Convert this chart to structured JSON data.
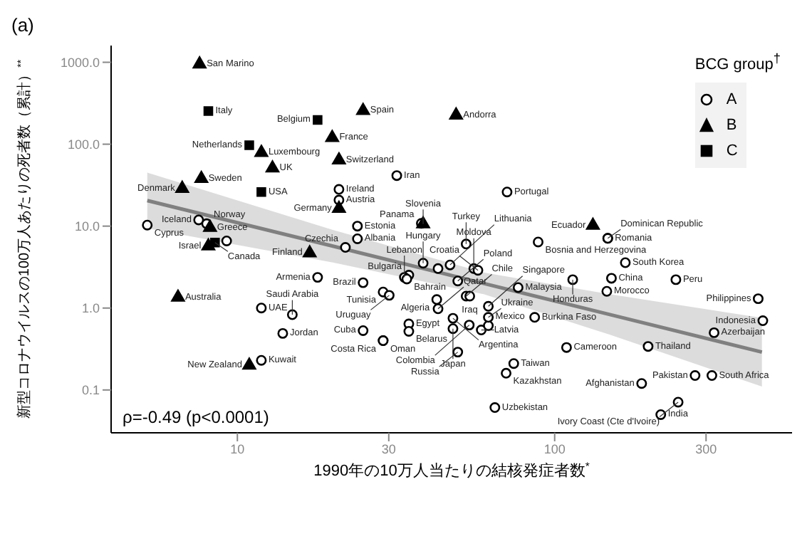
{
  "chart_data": {
    "type": "scatter",
    "xlabel": "1990年の10万人当たりの結核発症者数$^{*}$",
    "ylabel": "新型コロナウイルスの100万人あたりの死者数（累計）$^{**}$",
    "legend_title": "BCG group$^{†}$",
    "legend": "top right",
    "log": "xy",
    "xlim": [
      4,
      560
    ],
    "xticks": [
      10,
      30,
      100,
      300
    ],
    "ylim": [
      0.03,
      1600
    ],
    "yticks": [
      {
        "value": 0.1,
        "label": "0.1"
      },
      {
        "value": 1,
        "label": "1.0"
      },
      {
        "value": 10,
        "label": "10.0"
      },
      {
        "value": 100,
        "label": "100.0"
      },
      {
        "value": 1000,
        "label": "1000.0"
      }
    ],
    "series": [
      {
        "type": "line",
        "color": "#808080",
        "x": [
          5.2,
          20,
          60,
          150,
          450
        ],
        "values": [
          20.5,
          5.7,
          1.99,
          0.83,
          0.29
        ],
        "lower": [
          9.4,
          3.6,
          1.47,
          0.47,
          0.11
        ],
        "upper": [
          45,
          9.0,
          2.7,
          1.47,
          0.76
        ]
      },
      {
        "name": "A",
        "marker": "circle",
        "color": "#000000",
        "x": [
          20.9,
          31.8,
          20.9,
          7.55,
          8.0,
          5.2,
          23.9,
          23.9,
          38,
          9.25,
          21.9,
          17.9,
          24.9,
          34.7,
          33.6,
          34.2,
          28.8,
          30.1,
          11.9,
          14.9,
          13.9,
          24.9,
          34.7,
          34.7,
          28.8,
          28.8,
          11.9,
          42.5,
          42.9,
          47.8,
          47.8,
          53.8,
          49.5,
          58.7,
          61.8,
          61.8,
          74.3,
          70.3,
          64.8,
          61.8,
          52.6,
          54,
          49.5,
          55.6,
          57.3,
          46.8,
          42.9,
          38.5,
          52.6,
          88.7,
          70.8,
          76.7,
          86.5,
          109,
          114,
          151,
          146,
          167,
          147,
          147,
          241,
          438,
          453,
          318,
          197,
          277,
          313,
          188,
          245,
          216
        ],
        "values": [
          28.1,
          41.4,
          20.8,
          11.9,
          10.7,
          10.3,
          10.0,
          7.0,
          10.8,
          6.6,
          5.5,
          2.37,
          2.04,
          2.52,
          2.37,
          2.26,
          1.57,
          1.43,
          1.0,
          0.83,
          0.49,
          0.53,
          0.64,
          0.52,
          0.4,
          0.4,
          0.23,
          1.27,
          0.98,
          0.75,
          0.56,
          0.62,
          0.29,
          0.54,
          0.61,
          0.77,
          0.21,
          0.16,
          0.061,
          1.05,
          1.4,
          1.4,
          2.14,
          3.03,
          2.89,
          3.36,
          3.03,
          3.53,
          6.05,
          6.4,
          26.1,
          1.78,
          0.77,
          0.33,
          2.22,
          2.31,
          1.6,
          3.58,
          7.1,
          7.1,
          2.22,
          1.3,
          0.7,
          0.5,
          0.34,
          0.15,
          0.15,
          0.12,
          0.071,
          0.05
        ]
      },
      {
        "name": "B",
        "marker": "triangle",
        "color": "#000000",
        "x": [
          7.6,
          24.9,
          12.9,
          19.9,
          11.9,
          20.9,
          7.7,
          6.7,
          20.9,
          8.2,
          8.1,
          16.9,
          6.5,
          10.9,
          132,
          48.9,
          38.5
        ],
        "values": [
          950,
          257,
          51,
          120,
          79,
          64,
          38,
          28.8,
          16.4,
          9.6,
          5.7,
          4.7,
          1.35,
          0.2,
          10.2,
          226,
          10.6
        ]
      },
      {
        "name": "C",
        "marker": "square",
        "color": "#000000",
        "x": [
          8.1,
          17.9,
          10.9,
          11.9,
          8.5
        ],
        "values": [
          254,
          198,
          97,
          26.1,
          6.3
        ]
      }
    ],
    "annotations": [
      "(a)",
      "ρ=-0.49 (p<0.0001)",
      {
        "text": "Ireland",
        "x": 20.9,
        "y": 28.1
      },
      {
        "text": "Iran",
        "x": 31.8,
        "y": 41.4
      },
      {
        "text": "Austria",
        "x": 20.9,
        "y": 20.8
      },
      {
        "text": "Iceland",
        "x": 7.55,
        "y": 11.9
      },
      {
        "text": "Norway",
        "x": 8.0,
        "y": 10.7
      },
      {
        "text": "Cyprus",
        "x": 5.2,
        "y": 10.3
      },
      {
        "text": "Estonia",
        "x": 23.9,
        "y": 10.0
      },
      {
        "text": "Albania",
        "x": 23.9,
        "y": 7.0
      },
      {
        "text": "Panama",
        "x": 38,
        "y": 10.8
      },
      {
        "text": "Czechia",
        "x": 21.9,
        "y": 5.5
      },
      {
        "text": "Armenia",
        "x": 17.9,
        "y": 2.37
      },
      {
        "text": "Brazil",
        "x": 24.9,
        "y": 2.04
      },
      {
        "text": "Bulgaria",
        "x": 34.7,
        "y": 2.52
      },
      {
        "text": "Lebanon",
        "x": 33.6,
        "y": 2.37
      },
      {
        "text": "Bahrain",
        "x": 34.2,
        "y": 2.26
      },
      {
        "text": "Tunisia",
        "x": 28.8,
        "y": 1.57
      },
      {
        "text": "Uruguay",
        "x": 30.1,
        "y": 1.43
      },
      {
        "text": "UAE",
        "x": 11.9,
        "y": 1.0
      },
      {
        "text": "Saudi Arabia",
        "x": 14.9,
        "y": 0.83
      },
      {
        "text": "Jordan",
        "x": 13.9,
        "y": 0.49
      },
      {
        "text": "Cuba",
        "x": 24.9,
        "y": 0.53
      },
      {
        "text": "Egypt",
        "x": 34.7,
        "y": 0.64
      },
      {
        "text": "Belarus",
        "x": 34.7,
        "y": 0.52
      },
      {
        "text": "Oman",
        "x": 28.8,
        "y": 0.4
      },
      {
        "text": "Costa Rica",
        "x": 28.8,
        "y": 0.4
      },
      {
        "text": "Kuwait",
        "x": 11.9,
        "y": 0.23
      },
      {
        "text": "Algeria",
        "x": 42.5,
        "y": 1.27
      },
      {
        "text": "Qatar",
        "x": 42.9,
        "y": 0.98
      },
      {
        "text": "Argentina",
        "x": 47.8,
        "y": 0.75
      },
      {
        "text": "Japan",
        "x": 47.8,
        "y": 0.56
      },
      {
        "text": "Colombia",
        "x": 53.8,
        "y": 0.62
      },
      {
        "text": "Russia",
        "x": 49.5,
        "y": 0.29
      },
      {
        "text": "Latvia",
        "x": 58.7,
        "y": 0.54
      },
      {
        "text": "Mexico",
        "x": 61.8,
        "y": 0.61
      },
      {
        "text": "Ukraine",
        "x": 61.8,
        "y": 0.77
      },
      {
        "text": "Taiwan",
        "x": 74.3,
        "y": 0.21
      },
      {
        "text": "Kazakhstan",
        "x": 70.3,
        "y": 0.16
      },
      {
        "text": "Uzbekistan",
        "x": 64.8,
        "y": 0.061
      },
      {
        "text": "Singapore",
        "x": 61.8,
        "y": 1.05
      },
      {
        "text": "Chile",
        "x": 52.6,
        "y": 1.4
      },
      {
        "text": "Iraq",
        "x": 54,
        "y": 1.4
      },
      {
        "text": "Poland",
        "x": 49.5,
        "y": 2.14
      },
      {
        "text": "Moldova",
        "x": 55.6,
        "y": 3.03
      },
      {
        "text": "Croatia",
        "x": 57.3,
        "y": 2.89
      },
      {
        "text": "Lithuania",
        "x": 46.8,
        "y": 3.36
      },
      {
        "text": "Hungary",
        "x": 38.5,
        "y": 3.53
      },
      {
        "text": "Turkey",
        "x": 52.6,
        "y": 6.05
      },
      {
        "text": "Bosnia and Herzegovina",
        "x": 88.7,
        "y": 6.4
      },
      {
        "text": "Portugal",
        "x": 70.8,
        "y": 26.1
      },
      {
        "text": "Malaysia",
        "x": 76.7,
        "y": 1.78
      },
      {
        "text": "Burkina Faso",
        "x": 86.5,
        "y": 0.77
      },
      {
        "text": "Cameroon",
        "x": 109,
        "y": 0.33
      },
      {
        "text": "Honduras",
        "x": 114,
        "y": 2.22
      },
      {
        "text": "China",
        "x": 151,
        "y": 2.31
      },
      {
        "text": "Morocco",
        "x": 146,
        "y": 1.6
      },
      {
        "text": "South Korea",
        "x": 167,
        "y": 3.58
      },
      {
        "text": "Romania",
        "x": 147,
        "y": 7.1
      },
      {
        "text": "Dominican Republic",
        "x": 147,
        "y": 7.1
      },
      {
        "text": "Peru",
        "x": 241,
        "y": 2.22
      },
      {
        "text": "Philippines",
        "x": 438,
        "y": 1.3
      },
      {
        "text": "Indonesia",
        "x": 453,
        "y": 0.7
      },
      {
        "text": "Azerbaijan",
        "x": 318,
        "y": 0.5
      },
      {
        "text": "Thailand",
        "x": 197,
        "y": 0.34
      },
      {
        "text": "Pakistan",
        "x": 277,
        "y": 0.15
      },
      {
        "text": "South Africa",
        "x": 313,
        "y": 0.15
      },
      {
        "text": "Afghanistan",
        "x": 188,
        "y": 0.12
      },
      {
        "text": "Ivory Coast (Cte d'Ivoire)",
        "x": 245,
        "y": 0.071
      },
      {
        "text": "India",
        "x": 216,
        "y": 0.05
      },
      {
        "text": "San Marino",
        "x": 7.6,
        "y": 950
      },
      {
        "text": "Spain",
        "x": 24.9,
        "y": 257
      },
      {
        "text": "UK",
        "x": 12.9,
        "y": 51
      },
      {
        "text": "France",
        "x": 19.9,
        "y": 120
      },
      {
        "text": "Luxembourg",
        "x": 11.9,
        "y": 79
      },
      {
        "text": "Switzerland",
        "x": 20.9,
        "y": 64
      },
      {
        "text": "Sweden",
        "x": 7.7,
        "y": 38
      },
      {
        "text": "Denmark",
        "x": 6.7,
        "y": 28.8
      },
      {
        "text": "Germany",
        "x": 20.9,
        "y": 16.4
      },
      {
        "text": "Greece",
        "x": 8.2,
        "y": 9.6
      },
      {
        "text": "Israel",
        "x": 8.1,
        "y": 5.7
      },
      {
        "text": "Finland",
        "x": 16.9,
        "y": 4.7
      },
      {
        "text": "Australia",
        "x": 6.5,
        "y": 1.35
      },
      {
        "text": "New Zealand",
        "x": 10.9,
        "y": 0.2
      },
      {
        "text": "Ecuador",
        "x": 132,
        "y": 10.2
      },
      {
        "text": "Andorra",
        "x": 48.9,
        "y": 226
      },
      {
        "text": "Slovenia",
        "x": 38.5,
        "y": 10.6
      },
      {
        "text": "Italy",
        "x": 8.1,
        "y": 254
      },
      {
        "text": "Belgium",
        "x": 17.9,
        "y": 198
      },
      {
        "text": "Netherlands",
        "x": 10.9,
        "y": 97
      },
      {
        "text": "USA",
        "x": 11.9,
        "y": 26.1
      },
      {
        "text": "Canada",
        "x": 8.5,
        "y": 6.3
      }
    ]
  }
}
